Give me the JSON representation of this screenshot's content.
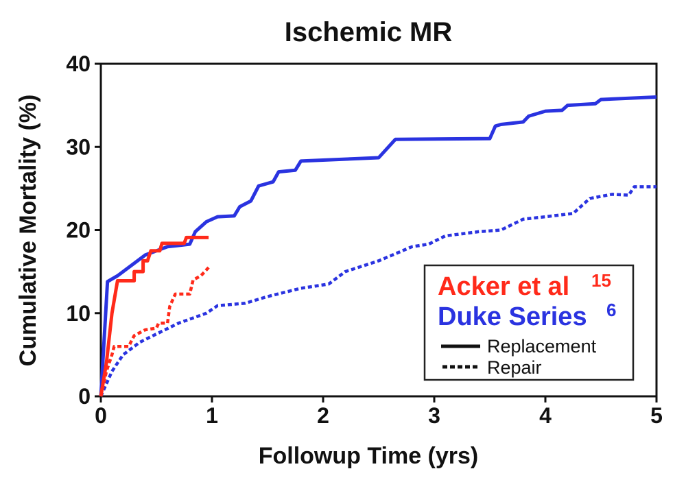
{
  "chart_data": {
    "type": "line",
    "title": "Ischemic MR",
    "xlabel": "Followup Time (yrs)",
    "ylabel": "Cumulative Mortality (%)",
    "xlim": [
      0,
      5
    ],
    "ylim": [
      0,
      40
    ],
    "xticks": [
      "0",
      "1",
      "2",
      "3",
      "4",
      "5"
    ],
    "yticks": [
      "0",
      "10",
      "20",
      "30",
      "40"
    ],
    "grid": false,
    "legend": {
      "placement": "bottom-right",
      "groups": [
        {
          "label": "Acker et al",
          "superscript": "15",
          "color": "#ff2a1a"
        },
        {
          "label": "Duke Series",
          "superscript": "6",
          "color": "#2a33e0"
        }
      ],
      "styles": [
        {
          "label": "Replacement",
          "dash": "solid"
        },
        {
          "label": "Repair",
          "dash": "dotted"
        }
      ]
    },
    "series": [
      {
        "group": "Duke Series",
        "style": "Replacement",
        "color": "#2a33e0",
        "points": [
          [
            0,
            0
          ],
          [
            0.06,
            13.8
          ],
          [
            0.15,
            14.5
          ],
          [
            0.3,
            16
          ],
          [
            0.4,
            17
          ],
          [
            0.5,
            17.5
          ],
          [
            0.6,
            18
          ],
          [
            0.8,
            18.3
          ],
          [
            0.85,
            19.8
          ],
          [
            0.95,
            21
          ],
          [
            1.05,
            21.6
          ],
          [
            1.2,
            21.7
          ],
          [
            1.25,
            22.8
          ],
          [
            1.35,
            23.5
          ],
          [
            1.42,
            25.3
          ],
          [
            1.55,
            25.8
          ],
          [
            1.6,
            27
          ],
          [
            1.75,
            27.2
          ],
          [
            1.8,
            28.3
          ],
          [
            2.5,
            28.7
          ],
          [
            2.65,
            30.9
          ],
          [
            3.5,
            31
          ],
          [
            3.55,
            32.5
          ],
          [
            3.6,
            32.7
          ],
          [
            3.8,
            33
          ],
          [
            3.85,
            33.7
          ],
          [
            4.0,
            34.3
          ],
          [
            4.15,
            34.4
          ],
          [
            4.2,
            35
          ],
          [
            4.45,
            35.2
          ],
          [
            4.5,
            35.7
          ],
          [
            5.0,
            36
          ]
        ]
      },
      {
        "group": "Duke Series",
        "style": "Repair",
        "color": "#2a33e0",
        "points": [
          [
            0,
            0
          ],
          [
            0.1,
            3
          ],
          [
            0.2,
            5
          ],
          [
            0.35,
            6.5
          ],
          [
            0.5,
            7.5
          ],
          [
            0.7,
            8.8
          ],
          [
            0.95,
            10
          ],
          [
            1.05,
            10.9
          ],
          [
            1.3,
            11.2
          ],
          [
            1.5,
            12
          ],
          [
            1.8,
            13
          ],
          [
            2.05,
            13.5
          ],
          [
            2.2,
            15
          ],
          [
            2.5,
            16.3
          ],
          [
            2.8,
            18
          ],
          [
            2.95,
            18.3
          ],
          [
            3.1,
            19.3
          ],
          [
            3.4,
            19.8
          ],
          [
            3.6,
            20
          ],
          [
            3.8,
            21.3
          ],
          [
            4.0,
            21.6
          ],
          [
            4.25,
            22
          ],
          [
            4.4,
            23.8
          ],
          [
            4.6,
            24.3
          ],
          [
            4.75,
            24.2
          ],
          [
            4.8,
            25.2
          ],
          [
            5,
            25.2
          ]
        ]
      },
      {
        "group": "Acker et al",
        "style": "Replacement",
        "color": "#ff2a1a",
        "points": [
          [
            0,
            0
          ],
          [
            0.05,
            4
          ],
          [
            0.1,
            10
          ],
          [
            0.15,
            13.9
          ],
          [
            0.3,
            13.9
          ],
          [
            0.3,
            15
          ],
          [
            0.38,
            15
          ],
          [
            0.38,
            16.3
          ],
          [
            0.42,
            16.3
          ],
          [
            0.45,
            17.5
          ],
          [
            0.53,
            17.5
          ],
          [
            0.55,
            18.4
          ],
          [
            0.75,
            18.4
          ],
          [
            0.77,
            19.1
          ],
          [
            0.97,
            19.1
          ]
        ]
      },
      {
        "group": "Acker et al",
        "style": "Repair",
        "color": "#ff2a1a",
        "points": [
          [
            0,
            0
          ],
          [
            0.05,
            3
          ],
          [
            0.1,
            5
          ],
          [
            0.12,
            6
          ],
          [
            0.25,
            6
          ],
          [
            0.3,
            7.3
          ],
          [
            0.4,
            8.0
          ],
          [
            0.5,
            8.2
          ],
          [
            0.52,
            8.8
          ],
          [
            0.6,
            8.8
          ],
          [
            0.62,
            10.8
          ],
          [
            0.67,
            12.3
          ],
          [
            0.8,
            12.3
          ],
          [
            0.83,
            14
          ],
          [
            0.9,
            14.5
          ],
          [
            0.97,
            15.5
          ]
        ]
      }
    ]
  }
}
